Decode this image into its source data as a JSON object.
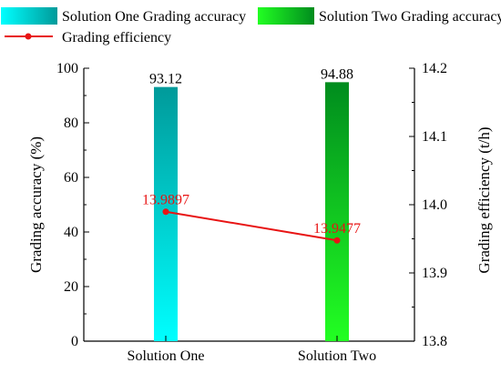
{
  "chart_data": {
    "type": "bar",
    "categories": [
      "Solution One",
      "Solution Two"
    ],
    "series": [
      {
        "name": "Grading accuracy",
        "axis": "left",
        "values": [
          93.12,
          94.88
        ],
        "data_labels": [
          "93.12",
          "94.88"
        ],
        "legend_labels": [
          "Solution One Grading accuracy",
          "Solution Two Grading accuracy"
        ],
        "colors": [
          {
            "top": "#009a9a",
            "bottom": "#00ffff"
          },
          {
            "top": "#008c1e",
            "bottom": "#22ff22"
          }
        ]
      },
      {
        "name": "Grading efficiency",
        "axis": "right",
        "type": "line",
        "values": [
          13.9897,
          13.9477
        ],
        "data_labels": [
          "13.9897",
          "13.9477"
        ],
        "legend_label": "Grading efficiency",
        "color": "#e81414"
      }
    ],
    "ylabel": "Grading accuracy (%)",
    "ylim": [
      0,
      100
    ],
    "yticks": [
      0,
      20,
      40,
      60,
      80,
      100
    ],
    "ytick_labels": [
      "0",
      "20",
      "40",
      "60",
      "80",
      "100"
    ],
    "y2label": "Grading efficiency (t/h)",
    "y2lim": [
      13.8,
      14.2
    ],
    "y2ticks": [
      13.8,
      13.9,
      14.0,
      14.1,
      14.2
    ],
    "y2tick_labels": [
      "13.8",
      "13.9",
      "14.0",
      "14.1",
      "14.2"
    ],
    "xlabel": "",
    "grid": false,
    "legend_position": "top"
  }
}
